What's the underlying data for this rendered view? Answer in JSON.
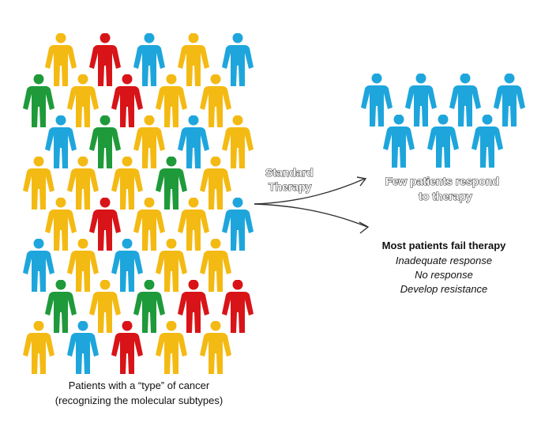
{
  "colors": {
    "yellow": "#F4BA14",
    "red": "#D81418",
    "blue": "#1EA6DC",
    "green": "#1F9A3A",
    "arrow": "#333333"
  },
  "icons": {
    "person": "person-icon",
    "arrow": "curved-arrow-icon"
  },
  "population": {
    "caption_line1": "Patients with a “type” of cancer",
    "caption_line2": "(recognizing the molecular subtypes)",
    "people": [
      {
        "color": "yellow"
      },
      {
        "color": "red"
      },
      {
        "color": "blue"
      },
      {
        "color": "yellow"
      },
      {
        "color": "blue"
      },
      {
        "color": "green"
      },
      {
        "color": "yellow"
      },
      {
        "color": "red"
      },
      {
        "color": "yellow"
      },
      {
        "color": "yellow"
      },
      {
        "color": "blue"
      },
      {
        "color": "green"
      },
      {
        "color": "yellow"
      },
      {
        "color": "blue"
      },
      {
        "color": "yellow"
      },
      {
        "color": "yellow"
      },
      {
        "color": "yellow"
      },
      {
        "color": "yellow"
      },
      {
        "color": "green"
      },
      {
        "color": "yellow"
      },
      {
        "color": "yellow"
      },
      {
        "color": "red"
      },
      {
        "color": "yellow"
      },
      {
        "color": "yellow"
      },
      {
        "color": "blue"
      },
      {
        "color": "blue"
      },
      {
        "color": "yellow"
      },
      {
        "color": "blue"
      },
      {
        "color": "yellow"
      },
      {
        "color": "yellow"
      },
      {
        "color": "green"
      },
      {
        "color": "yellow"
      },
      {
        "color": "green"
      },
      {
        "color": "red"
      },
      {
        "color": "red"
      },
      {
        "color": "yellow"
      },
      {
        "color": "blue"
      },
      {
        "color": "red"
      },
      {
        "color": "yellow"
      },
      {
        "color": "yellow"
      }
    ]
  },
  "therapy": {
    "label_line1": "Standard",
    "label_line2": "Therapy"
  },
  "responders": {
    "label_line1": "Few patients respond",
    "label_line2": "to therapy",
    "people": [
      {
        "color": "blue"
      },
      {
        "color": "blue"
      },
      {
        "color": "blue"
      },
      {
        "color": "blue"
      },
      {
        "color": "blue"
      },
      {
        "color": "blue"
      },
      {
        "color": "blue"
      }
    ]
  },
  "non_responders": {
    "heading": "Most patients fail therapy",
    "items": [
      "Inadequate response",
      "No response",
      "Develop resistance"
    ]
  }
}
